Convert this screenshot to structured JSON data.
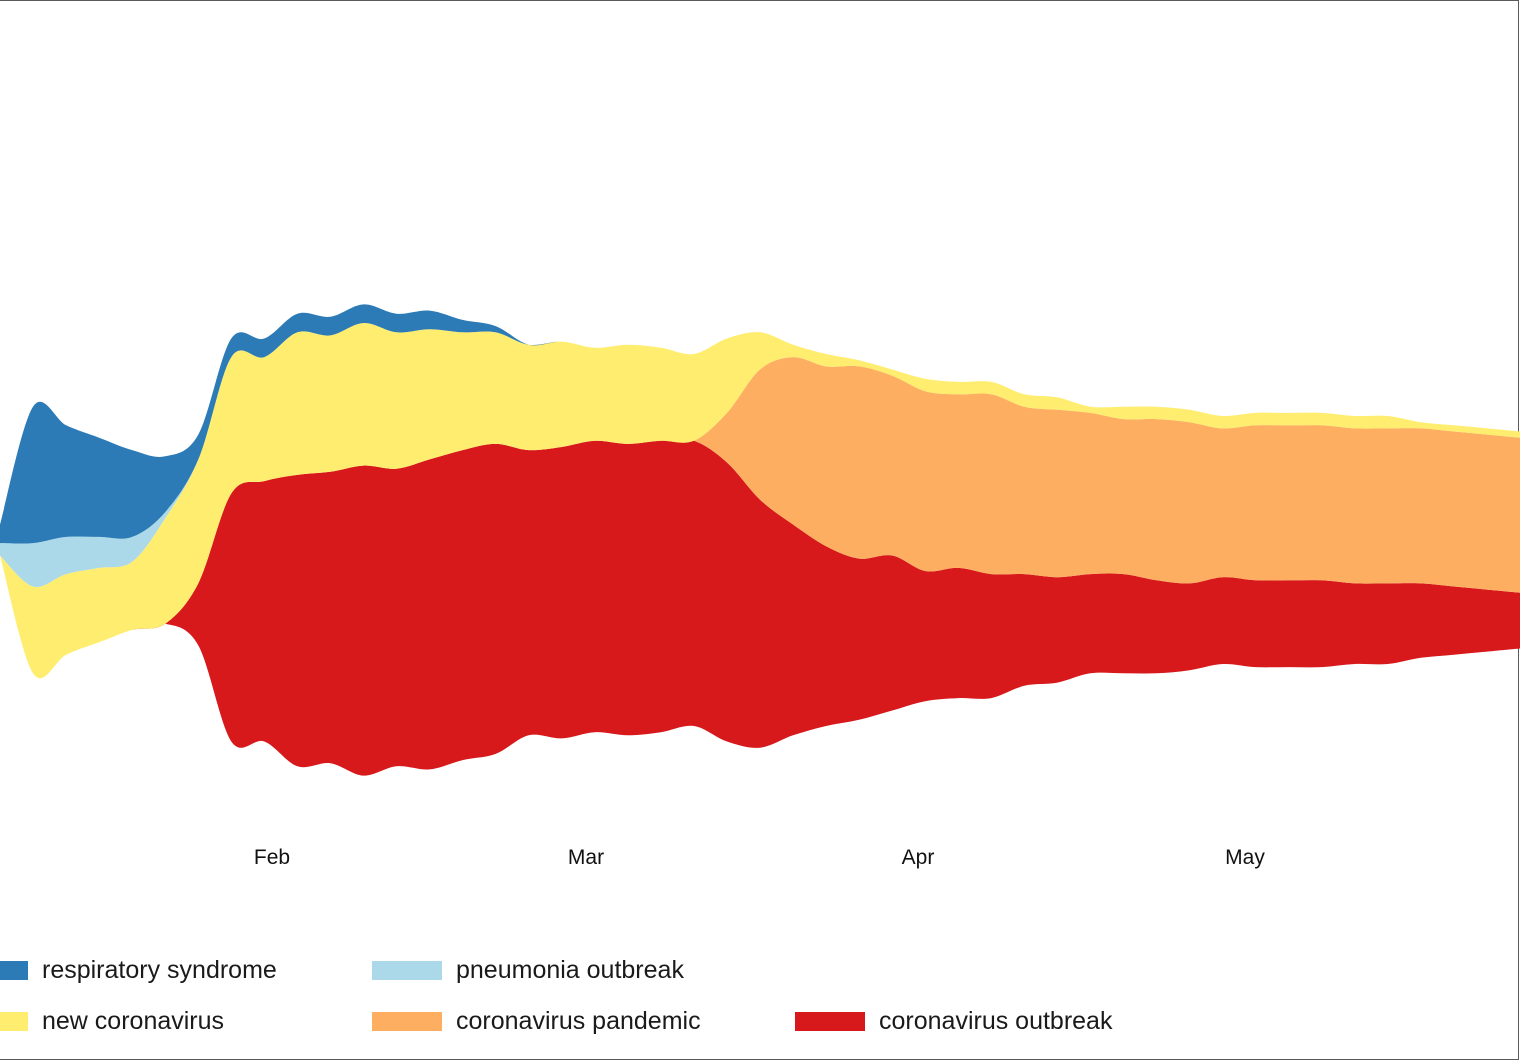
{
  "chart_data": {
    "type": "area",
    "subtype": "streamgraph",
    "title": "",
    "xlabel": "",
    "ylabel": "",
    "x_ticks": [
      "Feb",
      "Mar",
      "Apr",
      "May"
    ],
    "legend_position": "bottom",
    "grid": false,
    "x": [
      "Jan 11",
      "Jan 14",
      "Jan 17",
      "Jan 20",
      "Jan 23",
      "Jan 26",
      "Jan 29",
      "Feb 1",
      "Feb 4",
      "Feb 7",
      "Feb 10",
      "Feb 13",
      "Feb 16",
      "Feb 19",
      "Feb 22",
      "Feb 25",
      "Feb 28",
      "Mar 2",
      "Mar 5",
      "Mar 8",
      "Mar 11",
      "Mar 14",
      "Mar 17",
      "Mar 20",
      "Mar 23",
      "Mar 26",
      "Mar 29",
      "Apr 1",
      "Apr 4",
      "Apr 7",
      "Apr 10",
      "Apr 13",
      "Apr 16",
      "Apr 19",
      "Apr 22",
      "Apr 25",
      "Apr 28",
      "May 1",
      "May 4",
      "May 7",
      "May 10",
      "May 13",
      "May 16",
      "May 19",
      "May 22",
      "May 25",
      "May 28"
    ],
    "series": [
      {
        "name": "coronavirus outbreak",
        "color": "#d7191c",
        "values": [
          0,
          0,
          0,
          0,
          0,
          0,
          10,
          40,
          42,
          47,
          47,
          50,
          48,
          50,
          50,
          50,
          46,
          47,
          47,
          47,
          47,
          46,
          45,
          40,
          34,
          29,
          26,
          25,
          21,
          21,
          20,
          18,
          17,
          16,
          16,
          15,
          14,
          14,
          14,
          14,
          14,
          13,
          13,
          12,
          11,
          10,
          9
        ]
      },
      {
        "name": "coronavirus pandemic",
        "color": "#fdae61",
        "values": [
          0,
          0,
          0,
          0,
          0,
          0,
          0,
          0,
          0,
          0,
          0,
          0,
          0,
          0,
          0,
          0,
          0,
          0,
          0,
          0,
          0,
          0,
          8,
          21,
          27,
          29,
          31,
          29,
          29,
          28,
          29,
          27,
          27,
          26,
          25,
          26,
          26,
          24,
          25,
          25,
          25,
          25,
          25,
          25,
          25,
          25,
          25
        ]
      },
      {
        "name": "new coronavirus",
        "color": "#ffed6f",
        "values": [
          0,
          14,
          13,
          12,
          11,
          17,
          20,
          22,
          20,
          23,
          22,
          23,
          22,
          21,
          19,
          18,
          17,
          17,
          15,
          16,
          15,
          14,
          12,
          6,
          2,
          2,
          1,
          1,
          2,
          2,
          2,
          2,
          2,
          1,
          2,
          2,
          2,
          2,
          2,
          2,
          2,
          2,
          2,
          1,
          1,
          1,
          1
        ]
      },
      {
        "name": "pneumonia outbreak",
        "color": "#abd9e9",
        "values": [
          2,
          7,
          6,
          5,
          4,
          1,
          0,
          0,
          0,
          0,
          0,
          0,
          0,
          0,
          0,
          0,
          0,
          0,
          0,
          0,
          0,
          0,
          0,
          0,
          0,
          0,
          0,
          0,
          0,
          0,
          0,
          0,
          0,
          0,
          0,
          0,
          0,
          0,
          0,
          0,
          0,
          0,
          0,
          0,
          0,
          0,
          0
        ]
      },
      {
        "name": "respiratory syndrome",
        "color": "#2c7bb6",
        "values": [
          3,
          22,
          18,
          16,
          14,
          9,
          4,
          3,
          3,
          3,
          3,
          3,
          3,
          3,
          2,
          1,
          0,
          0,
          0,
          0,
          0,
          0,
          0,
          0,
          0,
          0,
          0,
          0,
          0,
          0,
          0,
          0,
          0,
          0,
          0,
          0,
          0,
          0,
          0,
          0,
          0,
          0,
          0,
          0,
          0,
          0,
          0
        ]
      }
    ]
  },
  "legend": {
    "items": [
      {
        "label": "respiratory syndrome",
        "color": "#2c7bb6"
      },
      {
        "label": "pneumonia outbreak",
        "color": "#abd9e9"
      },
      {
        "label": "new coronavirus",
        "color": "#ffed6f"
      },
      {
        "label": "coronavirus pandemic",
        "color": "#fdae61"
      },
      {
        "label": "coronavirus outbreak",
        "color": "#d7191c"
      }
    ]
  }
}
